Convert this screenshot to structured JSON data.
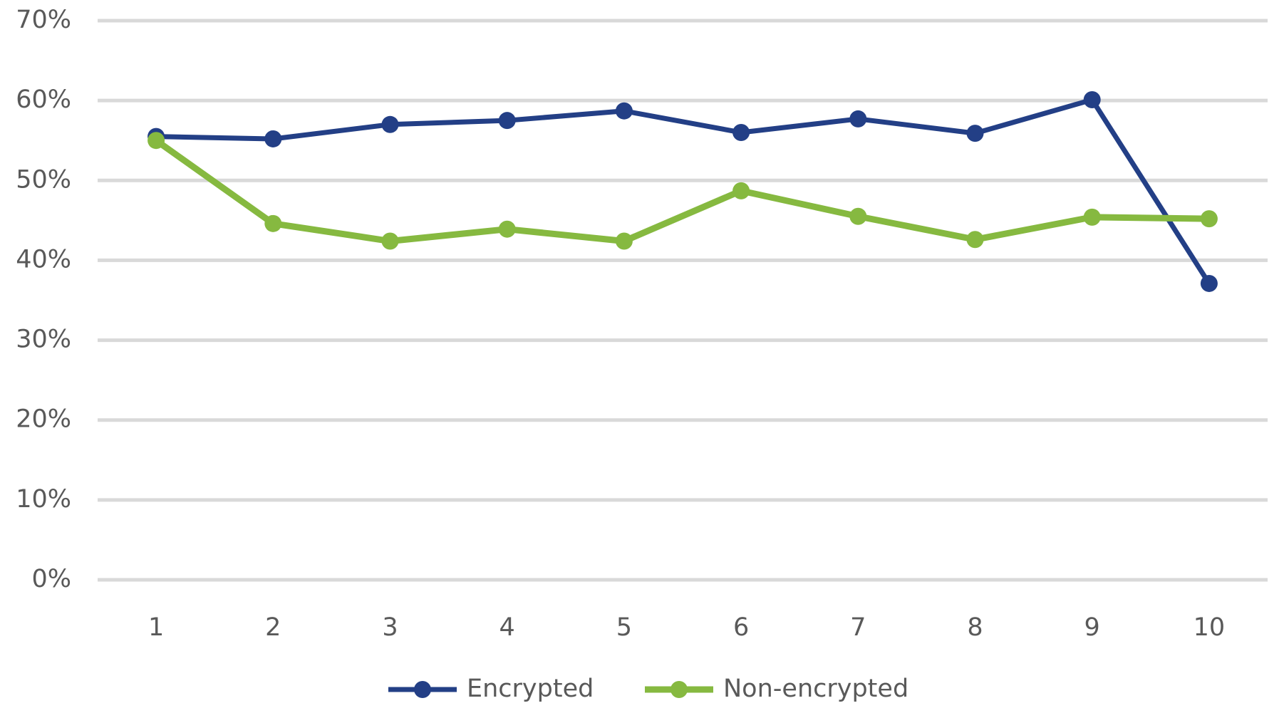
{
  "chart_data": {
    "type": "line",
    "categories": [
      "1",
      "2",
      "3",
      "4",
      "5",
      "6",
      "7",
      "8",
      "9",
      "10"
    ],
    "series": [
      {
        "name": "Encrypted",
        "color": "#233f86",
        "values": [
          55.5,
          55.2,
          57,
          57.5,
          58.7,
          56,
          57.7,
          55.9,
          60.1,
          37.1
        ]
      },
      {
        "name": "Non-encrypted",
        "color": "#86b940",
        "values": [
          55,
          44.6,
          42.4,
          43.9,
          42.4,
          48.7,
          45.5,
          42.6,
          45.4,
          45.2
        ]
      }
    ],
    "ylim": [
      0,
      70
    ],
    "yticks": [
      {
        "value": 0,
        "label": "0%"
      },
      {
        "value": 10,
        "label": "10%"
      },
      {
        "value": 20,
        "label": "20%"
      },
      {
        "value": 30,
        "label": "30%"
      },
      {
        "value": 40,
        "label": "40%"
      },
      {
        "value": 50,
        "label": "50%"
      },
      {
        "value": 60,
        "label": "60%"
      },
      {
        "value": 70,
        "label": "70%"
      }
    ],
    "grid": true,
    "legend": "bottom"
  }
}
